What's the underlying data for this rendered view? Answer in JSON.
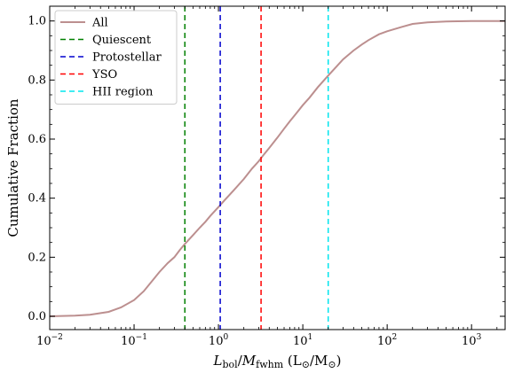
{
  "chart_data": {
    "type": "line",
    "title": "",
    "xlabel": {
      "L": "L",
      "L_sub": "bol",
      "slash": "/",
      "M": "M",
      "M_sub": "fwhm",
      "units_prefix": " (L",
      "sun1": "⊙",
      "units_mid": "/M",
      "sun2": "⊙",
      "units_suffix": ")"
    },
    "ylabel": "Cumulative Fraction",
    "xscale": "log",
    "xlim": [
      0.01,
      2500
    ],
    "ylim": [
      -0.045,
      1.05
    ],
    "xticks": [
      {
        "value": 0.01,
        "base": "10",
        "exp": "−2"
      },
      {
        "value": 0.1,
        "base": "10",
        "exp": "−1"
      },
      {
        "value": 1,
        "base": "10",
        "exp": "0"
      },
      {
        "value": 10,
        "base": "10",
        "exp": "1"
      },
      {
        "value": 100,
        "base": "10",
        "exp": "2"
      },
      {
        "value": 1000,
        "base": "10",
        "exp": "3"
      }
    ],
    "yticks": [
      {
        "value": 0.0,
        "label": "0.0"
      },
      {
        "value": 0.2,
        "label": "0.2"
      },
      {
        "value": 0.4,
        "label": "0.4"
      },
      {
        "value": 0.6,
        "label": "0.6"
      },
      {
        "value": 0.8,
        "label": "0.8"
      },
      {
        "value": 1.0,
        "label": "1.0"
      }
    ],
    "legend_position": "upper-left",
    "series": [
      {
        "name": "All",
        "style": "solid",
        "color": "#bc8f8f",
        "x": [
          0.01,
          0.02,
          0.03,
          0.05,
          0.07,
          0.1,
          0.13,
          0.17,
          0.2,
          0.25,
          0.3,
          0.35,
          0.4,
          0.5,
          0.6,
          0.7,
          0.8,
          1.0,
          1.2,
          1.5,
          2.0,
          2.5,
          3.0,
          3.5,
          4.0,
          5.0,
          6.0,
          7.0,
          8.0,
          10,
          12,
          15,
          20,
          25,
          30,
          40,
          50,
          60,
          80,
          100,
          150,
          200,
          300,
          500,
          1000,
          2500
        ],
        "y": [
          0.0,
          0.002,
          0.005,
          0.015,
          0.03,
          0.055,
          0.085,
          0.125,
          0.15,
          0.18,
          0.2,
          0.225,
          0.245,
          0.275,
          0.3,
          0.32,
          0.34,
          0.37,
          0.395,
          0.425,
          0.465,
          0.5,
          0.525,
          0.55,
          0.57,
          0.605,
          0.635,
          0.66,
          0.68,
          0.715,
          0.74,
          0.775,
          0.815,
          0.845,
          0.87,
          0.9,
          0.92,
          0.935,
          0.955,
          0.965,
          0.98,
          0.99,
          0.995,
          0.998,
          1.0,
          1.0
        ]
      },
      {
        "name": "Quiescent",
        "style": "dashed",
        "color": "#008000",
        "vline": 0.4
      },
      {
        "name": "Protostellar",
        "style": "dashed",
        "color": "#0000cd",
        "vline": 1.05
      },
      {
        "name": "YSO",
        "style": "dashed",
        "color": "#ff0000",
        "vline": 3.2
      },
      {
        "name": "HII region",
        "style": "dashed",
        "color": "#00e5ee",
        "vline": 20
      }
    ]
  }
}
